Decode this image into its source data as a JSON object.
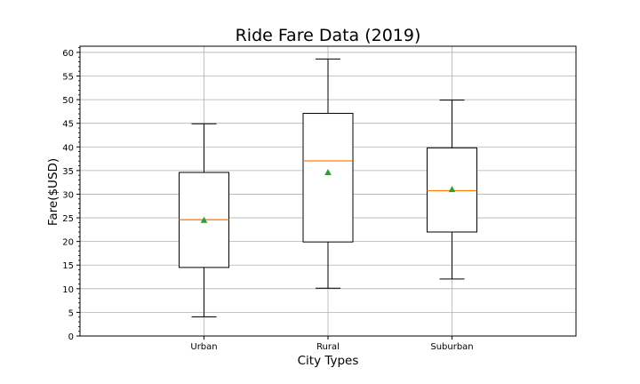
{
  "chart_data": {
    "type": "box",
    "title": "Ride Fare Data (2019)",
    "xlabel": "City Types",
    "ylabel": "Fare($USD)",
    "ylim": [
      0,
      61.3
    ],
    "yticks": [
      0,
      5,
      10,
      15,
      20,
      25,
      30,
      35,
      40,
      45,
      50,
      55,
      60
    ],
    "grid": true,
    "categories": [
      "Urban",
      "Rural",
      "Suburban"
    ],
    "boxes": [
      {
        "label": "Urban",
        "whisker_low": 4.05,
        "q1": 14.5,
        "median": 24.6,
        "mean": 24.5,
        "q3": 34.6,
        "whisker_high": 44.9
      },
      {
        "label": "Rural",
        "whisker_low": 10.1,
        "q1": 19.9,
        "median": 37.05,
        "mean": 34.6,
        "q3": 47.1,
        "whisker_high": 58.6
      },
      {
        "label": "Suburban",
        "whisker_low": 12.05,
        "q1": 22.0,
        "median": 30.75,
        "mean": 31.0,
        "q3": 39.8,
        "whisker_high": 49.9
      }
    ],
    "colors": {
      "box": "#000000",
      "median": "#ff7f0e",
      "mean": "#2ca02c",
      "grid": "#b0b0b0"
    }
  }
}
